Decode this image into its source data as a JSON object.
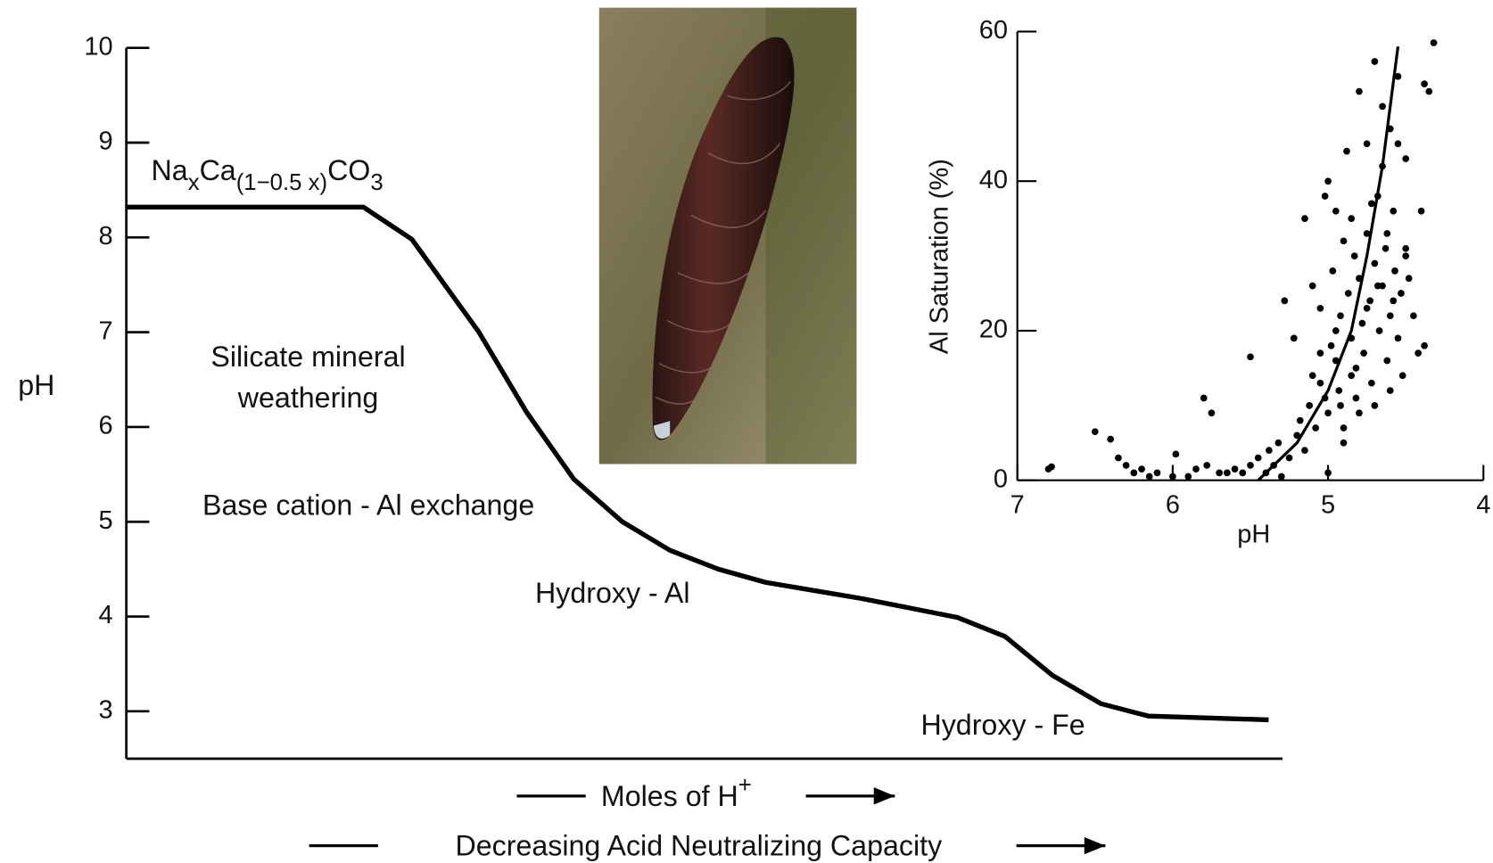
{
  "chart_data": [
    {
      "type": "line",
      "y_label": "pH",
      "x_label": {
        "text": "Moles of H",
        "sup": "+"
      },
      "x_label2": "Decreasing Acid Neutralizing Capacity",
      "ylim": [
        2.5,
        10
      ],
      "yticks": [
        3,
        4,
        5,
        6,
        7,
        8,
        9,
        10
      ],
      "xlim": [
        0,
        100
      ],
      "x": [
        0,
        20.5,
        24.7,
        30.5,
        34.6,
        38.7,
        42.9,
        47.0,
        51.2,
        55.3,
        63.6,
        71.9,
        76.0,
        80.1,
        84.3,
        88.4,
        98.8
      ],
      "values": [
        8.32,
        8.32,
        7.98,
        7.0,
        6.16,
        5.45,
        5.0,
        4.7,
        4.5,
        4.36,
        4.19,
        3.99,
        3.79,
        3.38,
        3.08,
        2.95,
        2.91
      ],
      "color": "#000000",
      "formula": [
        "Na",
        "x",
        "Ca",
        "(1−0.5 x)",
        "CO",
        "3"
      ],
      "annotations": [
        "Silicate mineral",
        "weathering",
        "Base cation - Al exchange",
        "Hydroxy - Al",
        "Hydroxy - Fe"
      ]
    },
    {
      "type": "scatter",
      "x_label": "pH",
      "y_label": "Al Saturation (%)",
      "xlim": [
        7,
        4
      ],
      "xticks": [
        7,
        6,
        5,
        4
      ],
      "ylim": [
        0,
        60
      ],
      "yticks": [
        0,
        20,
        40,
        60
      ],
      "color": "#000000",
      "x": [
        6.8,
        6.78,
        6.5,
        6.4,
        6.35,
        6.3,
        6.25,
        6.2,
        6.15,
        6.1,
        6.0,
        5.98,
        5.9,
        5.85,
        5.8,
        5.78,
        5.75,
        5.7,
        5.65,
        5.6,
        5.55,
        5.5,
        5.5,
        5.45,
        5.4,
        5.38,
        5.35,
        5.32,
        5.3,
        5.28,
        5.25,
        5.22,
        5.2,
        5.18,
        5.15,
        5.15,
        5.12,
        5.1,
        5.08,
        5.05,
        5.05,
        5.02,
        5.0,
        5.0,
        4.98,
        4.97,
        4.95,
        4.95,
        4.93,
        4.92,
        4.9,
        4.9,
        4.88,
        4.87,
        4.85,
        4.85,
        4.83,
        4.82,
        4.8,
        4.8,
        4.78,
        4.77,
        4.75,
        4.75,
        4.73,
        4.72,
        4.7,
        4.7,
        4.68,
        4.67,
        4.65,
        4.65,
        4.63,
        4.62,
        4.6,
        4.6,
        4.58,
        4.57,
        4.55,
        4.55,
        4.53,
        4.52,
        4.5,
        4.5,
        4.48,
        4.45,
        4.42,
        4.4,
        4.38,
        4.35,
        4.32,
        4.38,
        4.7,
        4.9,
        5.0,
        4.8,
        4.6,
        4.5,
        4.55,
        4.75,
        4.85,
        4.95,
        5.05,
        5.1,
        4.65,
        4.58,
        4.72,
        4.82,
        4.92,
        5.02,
        4.68,
        4.62
      ],
      "values": [
        1.5,
        1.8,
        6.5,
        5.5,
        3,
        2,
        1,
        1.5,
        0.5,
        1,
        0.5,
        3.5,
        0.5,
        1.5,
        11,
        2,
        9,
        1,
        1,
        1.5,
        1,
        16.5,
        2,
        3,
        1,
        4,
        2,
        5,
        0.5,
        24,
        3,
        19,
        6,
        8,
        35,
        4,
        10,
        14,
        7,
        23,
        13,
        38,
        40,
        9,
        18,
        28,
        16,
        36,
        12,
        22,
        32,
        7,
        44,
        25,
        14,
        19,
        30,
        11,
        52,
        27,
        21,
        17,
        45,
        33,
        24,
        13,
        56,
        29,
        38,
        20,
        50,
        26,
        31,
        16,
        47,
        22,
        36,
        28,
        54,
        19,
        25,
        14,
        43,
        30,
        27,
        22,
        17,
        36,
        53,
        52,
        58.5,
        18,
        10,
        5,
        1,
        9,
        12,
        31,
        45,
        23,
        35,
        20,
        17,
        26,
        42,
        24,
        37,
        15,
        10,
        11,
        26,
        33
      ],
      "fit": {
        "x": [
          5.45,
          5.2,
          5.0,
          4.85,
          4.75,
          4.65,
          4.55
        ],
        "values": [
          0,
          5,
          12,
          20,
          30,
          42,
          58
        ]
      }
    }
  ]
}
